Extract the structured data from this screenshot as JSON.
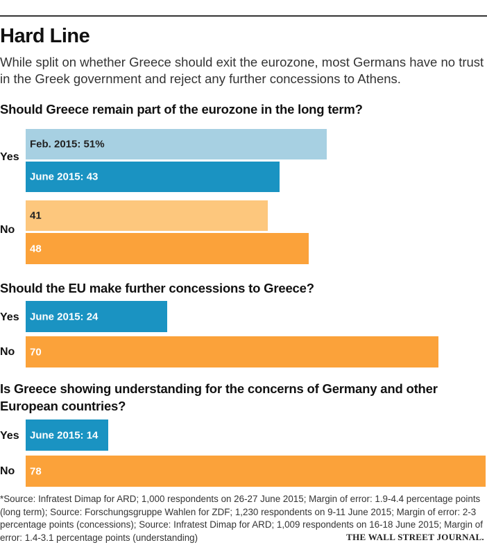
{
  "title": "Hard Line",
  "subtitle": "While split on whether Greece should exit the eurozone, most Germans have no trust in the Greek government and reject any further concessions to Athens.",
  "colors": {
    "feb_yes": "#a7d0e2",
    "june_yes": "#1a93c2",
    "feb_no": "#fdc77d",
    "june_no": "#fba23a",
    "light_text": "#222222",
    "dark_text": "#ffffff"
  },
  "chart_data": [
    {
      "type": "bar",
      "orientation": "horizontal",
      "title": "Should Greece remain part of the eurozone in the long term?",
      "categories": [
        "Yes",
        "No"
      ],
      "series": [
        {
          "name": "Feb. 2015",
          "values": [
            51,
            41
          ]
        },
        {
          "name": "June 2015",
          "values": [
            43,
            48
          ]
        }
      ],
      "bar_labels": [
        "Feb. 2015: 51%",
        "June 2015: 43",
        "41",
        "48"
      ],
      "xlim": [
        0,
        78
      ]
    },
    {
      "type": "bar",
      "orientation": "horizontal",
      "title": "Should the EU make further concessions to Greece?",
      "categories": [
        "Yes",
        "No"
      ],
      "series": [
        {
          "name": "June 2015",
          "values": [
            24,
            70
          ]
        }
      ],
      "bar_labels": [
        "June 2015: 24",
        "70"
      ],
      "xlim": [
        0,
        78
      ]
    },
    {
      "type": "bar",
      "orientation": "horizontal",
      "title": "Is Greece showing understanding for the concerns of Germany and other European countries?",
      "categories": [
        "Yes",
        "No"
      ],
      "series": [
        {
          "name": "June 2015",
          "values": [
            14,
            78
          ]
        }
      ],
      "bar_labels": [
        "June 2015: 14",
        "78"
      ],
      "xlim": [
        0,
        78
      ]
    }
  ],
  "footnote": "*Source: Infratest Dimap for ARD; 1,000 respondents on 26-27 June 2015; Margin of error: 1.9-4.4 percentage points (long term); Source: Forschungsgruppe Wahlen for ZDF; 1,230 respondents on 9-11 June 2015; Margin of error: 2-3 percentage points (concessions);  Source: Infratest Dimap for ARD; 1,009 respondents on 16-18 June 2015; Margin of error: 1.4-3.1 percentage points (understanding)",
  "credit": "THE WALL STREET JOURNAL."
}
